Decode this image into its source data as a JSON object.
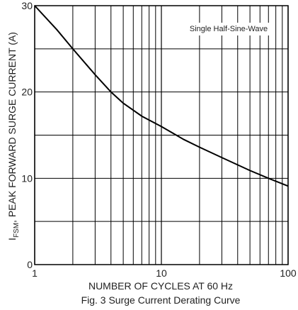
{
  "chart_data": {
    "type": "line",
    "title": "",
    "xlabel": "NUMBER OF CYCLES AT 60 Hz",
    "ylabel_main": "I",
    "ylabel_sub": "FSM",
    "ylabel_rest": ", PEAK FORWARD SURGE CURRENT (A)",
    "caption": "Fig. 3  Surge Current Derating Curve",
    "annotation": "Single Half-Sine-Wave",
    "x_scale": "log",
    "xlim": [
      1,
      100
    ],
    "ylim": [
      0,
      30
    ],
    "x_ticks": [
      1,
      10,
      100
    ],
    "x_tick_labels": [
      "1",
      "10",
      "100"
    ],
    "y_ticks": [
      0,
      10,
      20,
      30
    ],
    "y_tick_labels": [
      "0",
      "10",
      "20",
      "30"
    ],
    "y_minor_grid": [
      5,
      15,
      25
    ],
    "grid": true,
    "legend": "none",
    "series": [
      {
        "x": [
          1,
          1.5,
          2,
          3,
          4,
          5,
          7,
          10,
          15,
          20,
          30,
          50,
          70,
          100
        ],
        "y": [
          30,
          27.2,
          25.0,
          22.0,
          20.0,
          18.7,
          17.2,
          16.0,
          14.5,
          13.6,
          12.4,
          10.9,
          10.0,
          9.1
        ]
      }
    ]
  }
}
